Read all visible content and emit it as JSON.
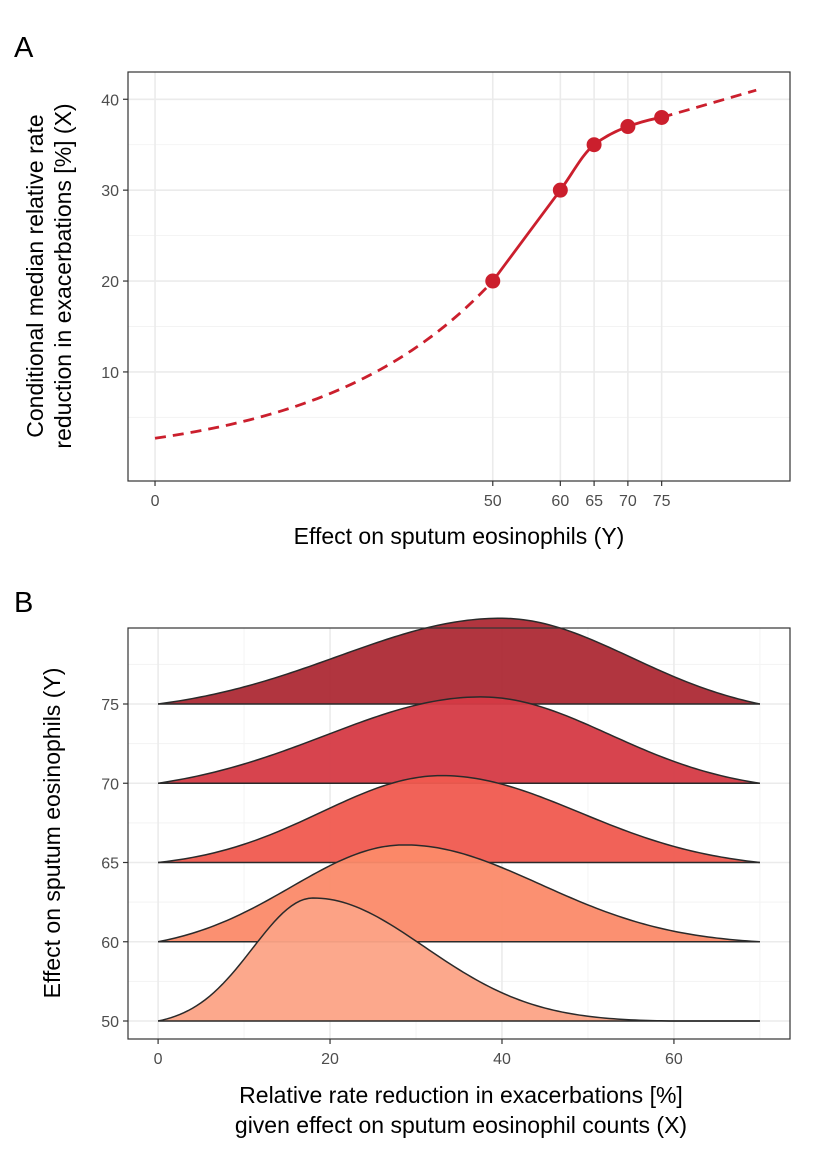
{
  "chart_data": [
    {
      "panel": "A",
      "type": "line",
      "xlabel": "Effect on sputum eosinophils (Y)",
      "ylabel_line1": "Conditional median relative rate",
      "ylabel_line2": "reduction in exacerbations [%] (X)",
      "xlim": [
        -4,
        94
      ],
      "ylim": [
        -2,
        43
      ],
      "x_ticks": [
        0,
        50,
        60,
        65,
        70,
        75
      ],
      "y_ticks": [
        10,
        20,
        30,
        40
      ],
      "y_minor": [
        5,
        15,
        25,
        35
      ],
      "points": [
        {
          "x": 50,
          "y": 20
        },
        {
          "x": 60,
          "y": 30
        },
        {
          "x": 65,
          "y": 35
        },
        {
          "x": 70,
          "y": 37
        },
        {
          "x": 75,
          "y": 38
        }
      ],
      "extrapolated_left": {
        "x_start": 0,
        "y_start": 2.7,
        "x_end": 50,
        "y_end": 20
      },
      "extrapolated_right": {
        "x_start": 75,
        "y_start": 38,
        "x_end": 89,
        "y_end": 41
      },
      "color": "#cb1f2d"
    },
    {
      "panel": "B",
      "type": "ridgeline",
      "xlabel_line1": "Relative rate reduction in exacerbations [%]",
      "xlabel_line2": "given effect on sputum eosinophil counts (X)",
      "ylabel": "Effect on sputum eosinophils (Y)",
      "xlim": [
        -3.5,
        73.5
      ],
      "x_ticks": [
        0,
        20,
        40,
        60
      ],
      "x_minor": [
        10,
        30,
        50,
        70
      ],
      "density_range": [
        0,
        70
      ],
      "rows": [
        {
          "label": "50",
          "mode": 18,
          "sd_left": 7,
          "sd_right": 13,
          "height": 1.45,
          "fill": "#fca386"
        },
        {
          "label": "60",
          "mode": 28.5,
          "sd_left": 13,
          "sd_right": 16,
          "height": 1.15,
          "fill": "#fb8a69"
        },
        {
          "label": "65",
          "mode": 33,
          "sd_left": 14,
          "sd_right": 16,
          "height": 1.0,
          "fill": "#f05a4f"
        },
        {
          "label": "70",
          "mode": 37.5,
          "sd_left": 18,
          "sd_right": 15,
          "height": 1.0,
          "fill": "#d53a45"
        },
        {
          "label": "75",
          "mode": 40,
          "sd_left": 19,
          "sd_right": 15,
          "height": 1.0,
          "fill": "#ad2a35"
        }
      ]
    }
  ]
}
